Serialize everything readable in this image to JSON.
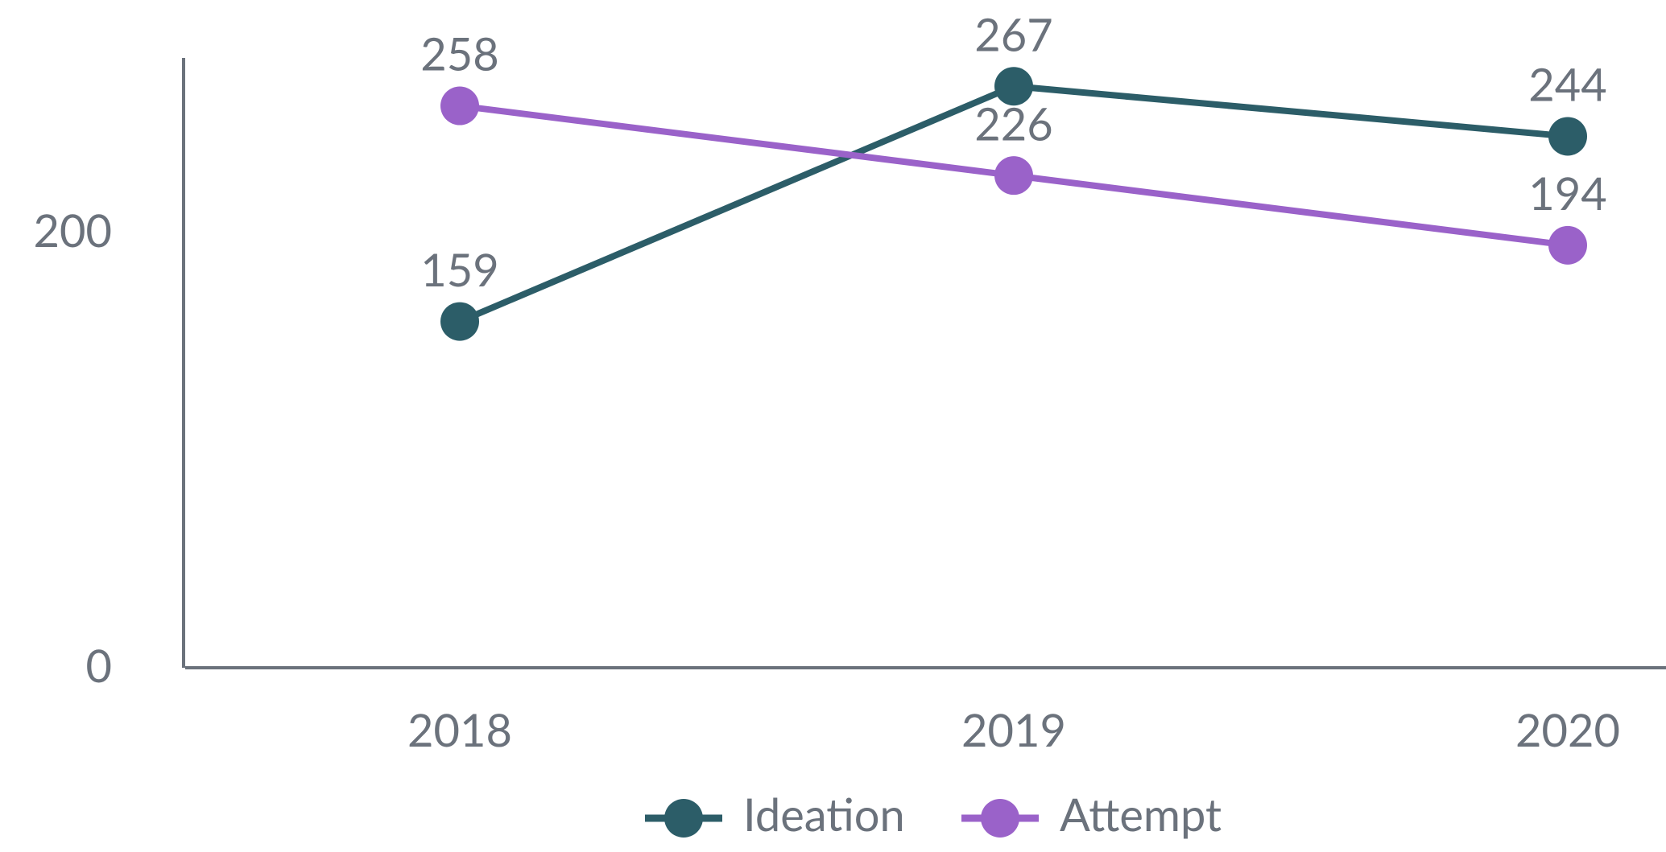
{
  "chart_data": {
    "type": "line",
    "categories": [
      "2018",
      "2019",
      "2020"
    ],
    "series": [
      {
        "name": "Ideation",
        "color": "#2c5d68",
        "values": [
          159,
          267,
          244
        ]
      },
      {
        "name": "Attempt",
        "color": "#9a62c9",
        "values": [
          258,
          226,
          194
        ]
      }
    ],
    "ylim": [
      0,
      280
    ],
    "yticks": [
      0,
      200
    ],
    "grid": false,
    "legend": "bottom"
  }
}
